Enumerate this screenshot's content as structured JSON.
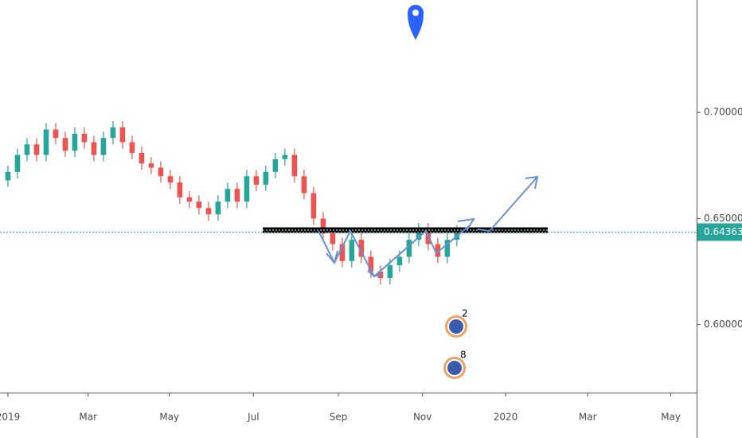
{
  "chart_data": {
    "type": "candlestick",
    "up_color": "#26a69a",
    "down_color": "#ef5350",
    "open": [
      0.668,
      0.672,
      0.68,
      0.685,
      0.68,
      0.692,
      0.688,
      0.682,
      0.69,
      0.686,
      0.68,
      0.688,
      0.693,
      0.686,
      0.681,
      0.676,
      0.674,
      0.67,
      0.667,
      0.66,
      0.658,
      0.655,
      0.652,
      0.658,
      0.664,
      0.658,
      0.67,
      0.666,
      0.672,
      0.678,
      0.68,
      0.67,
      0.662,
      0.65,
      0.643,
      0.638,
      0.63,
      0.64,
      0.632,
      0.625,
      0.622,
      0.628,
      0.632,
      0.64,
      0.645,
      0.638,
      0.632,
      0.64
    ],
    "high": [
      0.675,
      0.683,
      0.688,
      0.688,
      0.695,
      0.695,
      0.691,
      0.693,
      0.693,
      0.689,
      0.691,
      0.696,
      0.696,
      0.689,
      0.684,
      0.679,
      0.677,
      0.673,
      0.67,
      0.663,
      0.661,
      0.658,
      0.661,
      0.667,
      0.667,
      0.673,
      0.673,
      0.675,
      0.681,
      0.683,
      0.683,
      0.673,
      0.665,
      0.653,
      0.646,
      0.641,
      0.643,
      0.643,
      0.635,
      0.628,
      0.631,
      0.635,
      0.643,
      0.648,
      0.648,
      0.641,
      0.643,
      0.647
    ],
    "low": [
      0.665,
      0.669,
      0.677,
      0.677,
      0.677,
      0.685,
      0.679,
      0.679,
      0.683,
      0.677,
      0.677,
      0.685,
      0.683,
      0.678,
      0.673,
      0.671,
      0.667,
      0.664,
      0.657,
      0.655,
      0.652,
      0.649,
      0.649,
      0.655,
      0.655,
      0.655,
      0.663,
      0.663,
      0.669,
      0.675,
      0.667,
      0.659,
      0.647,
      0.64,
      0.635,
      0.627,
      0.627,
      0.629,
      0.622,
      0.619,
      0.619,
      0.625,
      0.629,
      0.637,
      0.635,
      0.629,
      0.629,
      0.637
    ],
    "close": [
      0.672,
      0.68,
      0.685,
      0.68,
      0.692,
      0.688,
      0.682,
      0.69,
      0.686,
      0.68,
      0.688,
      0.693,
      0.686,
      0.681,
      0.676,
      0.674,
      0.67,
      0.667,
      0.66,
      0.658,
      0.655,
      0.652,
      0.658,
      0.664,
      0.658,
      0.67,
      0.666,
      0.672,
      0.678,
      0.68,
      0.67,
      0.662,
      0.65,
      0.643,
      0.638,
      0.63,
      0.64,
      0.632,
      0.625,
      0.622,
      0.628,
      0.632,
      0.64,
      0.645,
      0.638,
      0.632,
      0.64,
      0.644
    ],
    "xlim": [
      -0.83,
      72.1
    ],
    "xticks": [
      {
        "value": 0,
        "label": "2019"
      },
      {
        "value": 8.4,
        "label": "Mar"
      },
      {
        "value": 16.9,
        "label": "May"
      },
      {
        "value": 25.7,
        "label": "Jul"
      },
      {
        "value": 34.6,
        "label": "Sep"
      },
      {
        "value": 43.4,
        "label": "Nov"
      },
      {
        "value": 52.1,
        "label": "2020"
      },
      {
        "value": 60.7,
        "label": "Mar"
      },
      {
        "value": 69.4,
        "label": "May"
      }
    ],
    "ylim": [
      0.568,
      0.753
    ],
    "yticks": [
      {
        "value": 0.6,
        "label": "0.60000"
      },
      {
        "value": 0.65,
        "label": "0.65000"
      },
      {
        "value": 0.7,
        "label": "0.70000"
      }
    ],
    "last_price": 0.64363,
    "last_price_color": "#26a69a",
    "events": [
      "2",
      "8"
    ]
  }
}
